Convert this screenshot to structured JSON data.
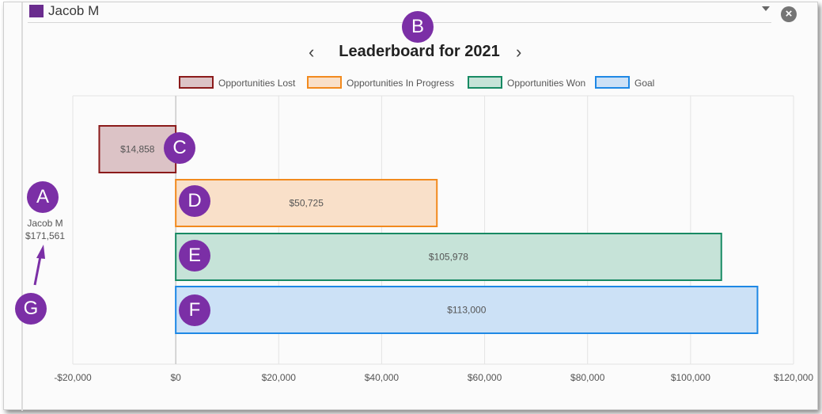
{
  "selector": {
    "value": "Jacob M",
    "swatch_color": "#6a2c8e"
  },
  "header": {
    "title": "Leaderboard for 2021",
    "prev_icon": "chevron-left-icon",
    "next_icon": "chevron-right-icon"
  },
  "annotations": [
    "A",
    "B",
    "C",
    "D",
    "E",
    "F",
    "G"
  ],
  "chart_data": {
    "type": "bar",
    "orientation": "horizontal",
    "title": "Leaderboard for 2021",
    "category": {
      "name": "Jacob M",
      "total": "$171,561"
    },
    "xlim": [
      -20000,
      120000
    ],
    "xticks": [
      "-$20,000",
      "$0",
      "$20,000",
      "$40,000",
      "$60,000",
      "$80,000",
      "$100,000",
      "$120,000"
    ],
    "legend_position": "top",
    "grid": true,
    "series": [
      {
        "name": "Opportunities Lost",
        "value": -14858,
        "label": "$14,858",
        "stroke": "#8b1a1a",
        "fill": "#dcc3c6"
      },
      {
        "name": "Opportunities In Progress",
        "value": 50725,
        "label": "$50,725",
        "stroke": "#f28a1e",
        "fill": "#f9e0c9"
      },
      {
        "name": "Opportunities Won",
        "value": 105978,
        "label": "$105,978",
        "stroke": "#178a63",
        "fill": "#c6e3d8"
      },
      {
        "name": "Goal",
        "value": 113000,
        "label": "$113,000",
        "stroke": "#1e88e5",
        "fill": "#cce1f6"
      }
    ]
  }
}
